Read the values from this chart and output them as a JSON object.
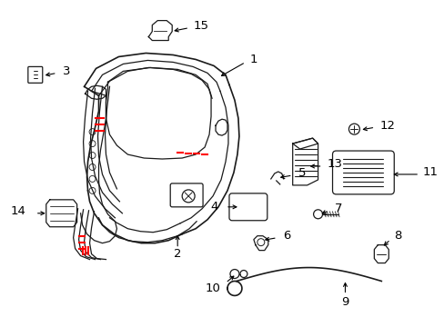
{
  "background_color": "#ffffff",
  "fig_width": 4.89,
  "fig_height": 3.6,
  "dpi": 100,
  "line_color": "#1a1a1a",
  "red_color": "#ff0000",
  "label_fontsize": 9.5
}
